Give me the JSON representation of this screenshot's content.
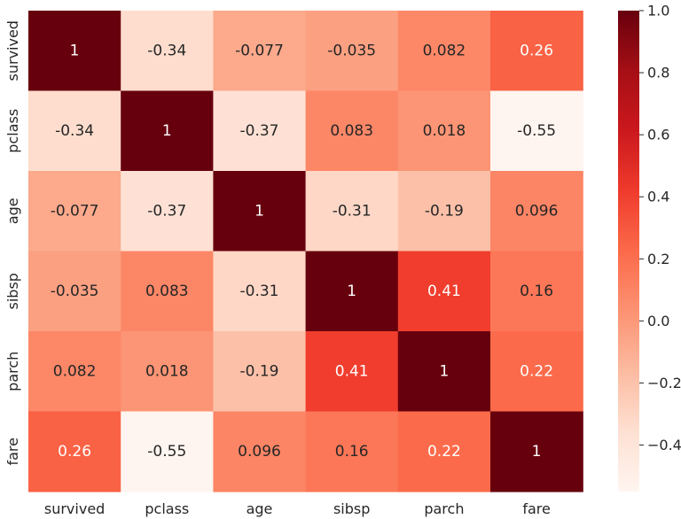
{
  "chart_data": {
    "type": "heatmap",
    "title": "",
    "xlabel": "",
    "ylabel": "",
    "x_labels": [
      "survived",
      "pclass",
      "age",
      "sibsp",
      "parch",
      "fare"
    ],
    "y_labels": [
      "survived",
      "pclass",
      "age",
      "sibsp",
      "parch",
      "fare"
    ],
    "values": [
      [
        1,
        -0.34,
        -0.077,
        -0.035,
        0.082,
        0.26
      ],
      [
        -0.34,
        1,
        -0.37,
        0.083,
        0.018,
        -0.55
      ],
      [
        -0.077,
        -0.37,
        1,
        -0.31,
        -0.19,
        0.096
      ],
      [
        -0.035,
        0.083,
        -0.31,
        1,
        0.41,
        0.16
      ],
      [
        0.082,
        0.018,
        -0.19,
        0.41,
        1,
        0.22
      ],
      [
        0.26,
        -0.55,
        0.096,
        0.16,
        0.22,
        1
      ]
    ],
    "annotations": [
      [
        "1",
        "-0.34",
        "-0.077",
        "-0.035",
        "0.082",
        "0.26"
      ],
      [
        "-0.34",
        "1",
        "-0.37",
        "0.083",
        "0.018",
        "-0.55"
      ],
      [
        "-0.077",
        "-0.37",
        "1",
        "-0.31",
        "-0.19",
        "0.096"
      ],
      [
        "-0.035",
        "0.083",
        "-0.31",
        "1",
        "0.41",
        "0.16"
      ],
      [
        "0.082",
        "0.018",
        "-0.19",
        "0.41",
        "1",
        "0.22"
      ],
      [
        "0.26",
        "-0.55",
        "0.096",
        "0.16",
        "0.22",
        "1"
      ]
    ],
    "colormap": "Reds",
    "vmin": -0.55,
    "vmax": 1.0,
    "colorbar_ticks": [
      1.0,
      0.8,
      0.6,
      0.4,
      0.2,
      0.0,
      -0.2,
      -0.4
    ],
    "colorbar_tick_labels": [
      "1.0",
      "0.8",
      "0.6",
      "0.4",
      "0.2",
      "0.0",
      "−0.2",
      "−0.4"
    ]
  }
}
